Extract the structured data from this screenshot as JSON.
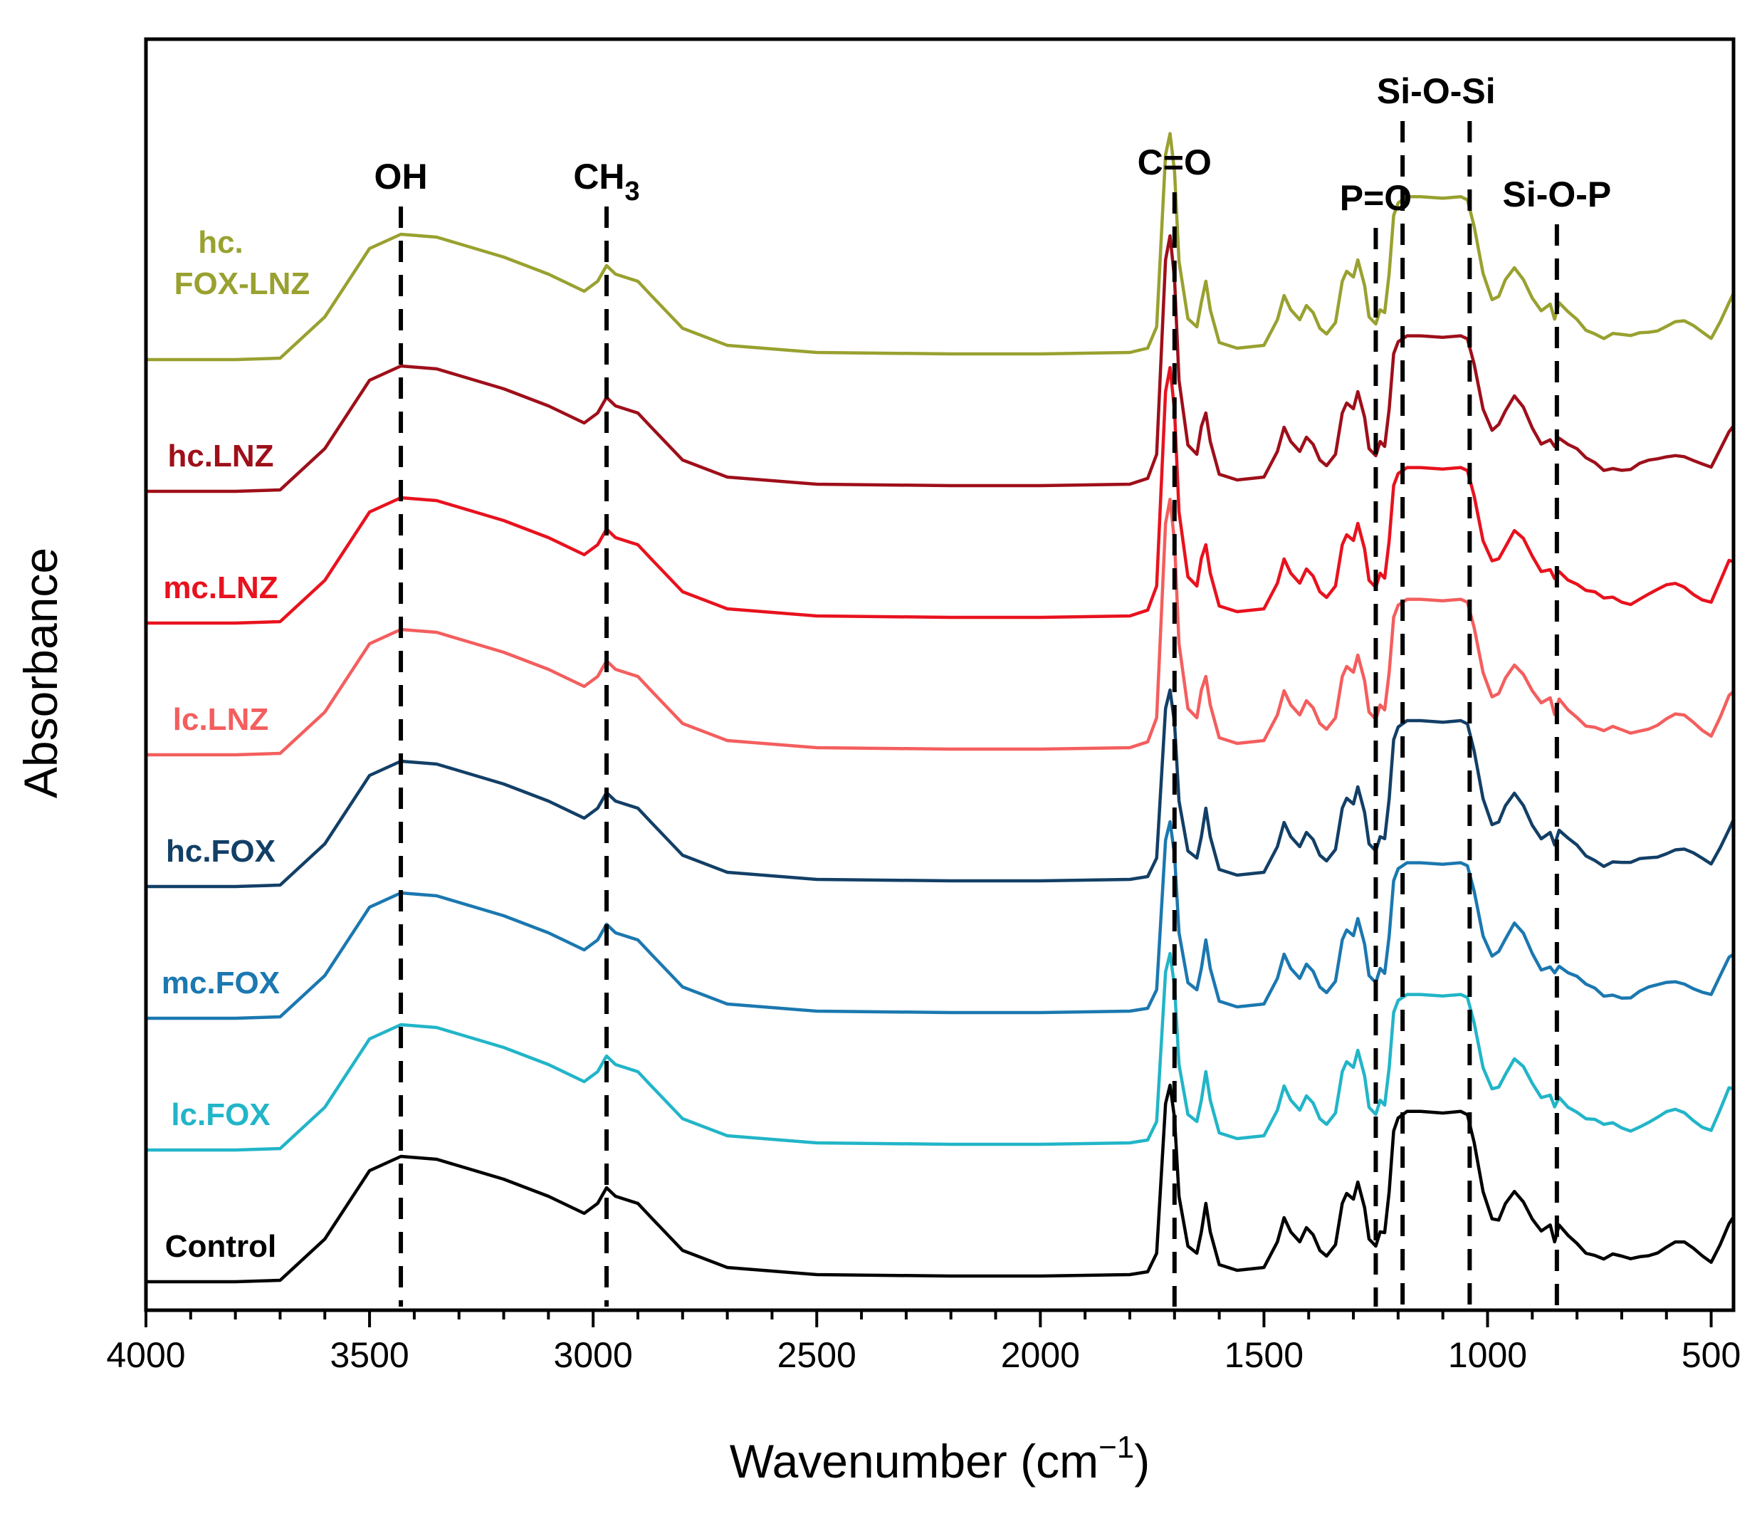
{
  "chart_data": {
    "type": "line",
    "title": "",
    "xlabel": "Wavenumber (cm",
    "xlabel_superscript": "−1",
    "xlabel_close": ")",
    "ylabel": "Absorbance",
    "xlim": [
      4000,
      450
    ],
    "x_reversed": true,
    "xticks": [
      4000,
      3500,
      3000,
      2500,
      2000,
      1500,
      1000,
      500
    ],
    "y_ticks_shown": false,
    "grid": false,
    "legend": "inline labels at left",
    "band_markers": [
      {
        "label": "OH",
        "x": 3430
      },
      {
        "label": "CH",
        "label_sub": "3",
        "x": 2970
      },
      {
        "label": "C=O",
        "x": 1700
      },
      {
        "label": "P=O",
        "x": 1250
      },
      {
        "label": "Si-O-Si",
        "x": 1190,
        "x2": 1040
      },
      {
        "label": "Si-O-P",
        "x": 845
      }
    ],
    "series": [
      {
        "name": "Control",
        "color": "#000000",
        "offset": 0,
        "c_scale": 1.0,
        "si_scale": 1.15
      },
      {
        "name": "lc.FOX",
        "color": "#22B5C8",
        "offset": 1,
        "c_scale": 1.0,
        "si_scale": 1.05
      },
      {
        "name": "mc.FOX",
        "color": "#1B78B0",
        "offset": 2,
        "c_scale": 1.0,
        "si_scale": 1.05
      },
      {
        "name": "hc.FOX",
        "color": "#123F66",
        "offset": 3,
        "c_scale": 1.0,
        "si_scale": 1.12
      },
      {
        "name": "lc.LNZ",
        "color": "#F45E5E",
        "offset": 4,
        "c_scale": 1.3,
        "si_scale": 1.05
      },
      {
        "name": "mc.LNZ",
        "color": "#E8121E",
        "offset": 5,
        "c_scale": 1.3,
        "si_scale": 1.05
      },
      {
        "name": "hc.LNZ",
        "color": "#9E0F1A",
        "offset": 6,
        "c_scale": 1.3,
        "si_scale": 1.05
      },
      {
        "name": "hc.",
        "name_line2": "FOX-LNZ",
        "color": "#99A130",
        "offset": 7,
        "c_scale": 1.15,
        "si_scale": 1.1
      }
    ],
    "spectrum_shape": {
      "x": [
        4000,
        3800,
        3700,
        3600,
        3500,
        3430,
        3350,
        3200,
        3100,
        3020,
        2990,
        2970,
        2950,
        2930,
        2900,
        2870,
        2800,
        2700,
        2500,
        2200,
        2000,
        1800,
        1760,
        1740,
        1720,
        1710,
        1700,
        1690,
        1670,
        1650,
        1640,
        1630,
        1620,
        1600,
        1560,
        1500,
        1470,
        1455,
        1440,
        1420,
        1405,
        1390,
        1375,
        1360,
        1340,
        1325,
        1315,
        1300,
        1290,
        1275,
        1265,
        1250,
        1240,
        1230,
        1220,
        1210,
        1200,
        1180,
        1150,
        1100,
        1060,
        1045,
        1030,
        1010,
        990,
        975,
        960,
        940,
        920,
        900,
        880,
        860,
        850,
        840,
        820,
        800,
        780,
        760,
        740,
        720,
        700,
        680,
        660,
        640,
        620,
        600,
        580,
        560,
        540,
        520,
        500,
        480,
        460,
        450
      ],
      "y": [
        0.0,
        0.0,
        0.01,
        0.3,
        0.78,
        0.88,
        0.86,
        0.72,
        0.6,
        0.48,
        0.55,
        0.66,
        0.6,
        0.58,
        0.55,
        0.45,
        0.22,
        0.1,
        0.05,
        0.04,
        0.04,
        0.05,
        0.07,
        0.2,
        1.25,
        1.38,
        1.15,
        0.6,
        0.25,
        0.2,
        0.35,
        0.55,
        0.35,
        0.12,
        0.08,
        0.1,
        0.28,
        0.45,
        0.35,
        0.28,
        0.38,
        0.33,
        0.22,
        0.18,
        0.26,
        0.55,
        0.62,
        0.58,
        0.7,
        0.52,
        0.3,
        0.25,
        0.35,
        0.3,
        0.55,
        0.92,
        1.0,
        1.04,
        1.04,
        1.03,
        1.04,
        1.02,
        0.85,
        0.55,
        0.4,
        0.45,
        0.55,
        0.65,
        0.58,
        0.45,
        0.35,
        0.38,
        0.3,
        0.38,
        0.32,
        0.28,
        0.22,
        0.2,
        0.16,
        0.18,
        0.16,
        0.15,
        0.18,
        0.2,
        0.22,
        0.25,
        0.27,
        0.26,
        0.22,
        0.18,
        0.15,
        0.28,
        0.42,
        0.45
      ]
    }
  }
}
